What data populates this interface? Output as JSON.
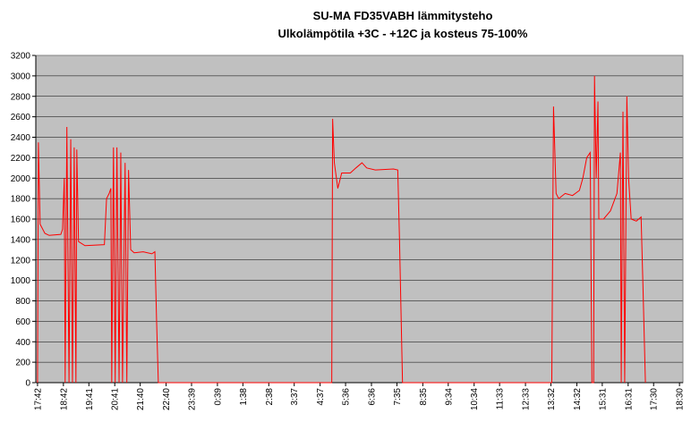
{
  "chart_data": {
    "type": "line",
    "title": "SU-MA FD35VABH lämmitysteho",
    "subtitle": "Ulkolämpötila  +3C - +12C ja kosteus 75-100%",
    "color": "#ff0000",
    "grid": true,
    "x": [
      0,
      2,
      6,
      17,
      27,
      54,
      58,
      62,
      64,
      68,
      73,
      77,
      81,
      85,
      89,
      91,
      95,
      110,
      155,
      160,
      166,
      170,
      172,
      176,
      180,
      184,
      189,
      193,
      197,
      203,
      207,
      211,
      216,
      224,
      245,
      265,
      272,
      276,
      280,
      682,
      684,
      688,
      696,
      705,
      725,
      738,
      752,
      763,
      783,
      825,
      835,
      839,
      846,
      1192,
      1196,
      1202,
      1208,
      1223,
      1240,
      1256,
      1264,
      1273,
      1281,
      1285,
      1289,
      1291,
      1295,
      1299,
      1301,
      1312,
      1328,
      1343,
      1351,
      1353,
      1357,
      1361,
      1366,
      1370,
      1376,
      1388,
      1399,
      1403,
      1409
    ],
    "values": [
      0,
      2350,
      1550,
      1460,
      1440,
      1450,
      1500,
      2000,
      0,
      2500,
      0,
      2380,
      0,
      2300,
      0,
      2280,
      1380,
      1340,
      1350,
      1800,
      1850,
      1900,
      0,
      2300,
      0,
      2300,
      0,
      2250,
      0,
      2150,
      0,
      2080,
      1300,
      1270,
      1280,
      1260,
      1280,
      600,
      0,
      0,
      2580,
      2150,
      1900,
      2050,
      2050,
      2100,
      2150,
      2100,
      2080,
      2090,
      2080,
      1400,
      0,
      0,
      2700,
      1850,
      1800,
      1850,
      1830,
      1880,
      2000,
      2200,
      2250,
      0,
      0,
      3000,
      2000,
      2750,
      1600,
      1600,
      1680,
      1850,
      2250,
      0,
      2650,
      0,
      2800,
      2000,
      1600,
      1580,
      1620,
      1000,
      0
    ],
    "xlim": [
      -4,
      1496
    ],
    "xticks": [
      {
        "value": 0,
        "label": "17:42"
      },
      {
        "value": 60,
        "label": "18:42"
      },
      {
        "value": 119,
        "label": "19:41"
      },
      {
        "value": 179,
        "label": "20:41"
      },
      {
        "value": 238,
        "label": "21:40"
      },
      {
        "value": 298,
        "label": "22:40"
      },
      {
        "value": 357,
        "label": "23:39"
      },
      {
        "value": 417,
        "label": "0:39"
      },
      {
        "value": 476,
        "label": "1:38"
      },
      {
        "value": 536,
        "label": "2:38"
      },
      {
        "value": 595,
        "label": "3:37"
      },
      {
        "value": 655,
        "label": "4:37"
      },
      {
        "value": 714,
        "label": "5:36"
      },
      {
        "value": 774,
        "label": "6:36"
      },
      {
        "value": 833,
        "label": "7:35"
      },
      {
        "value": 893,
        "label": "8:35"
      },
      {
        "value": 952,
        "label": "9:34"
      },
      {
        "value": 1012,
        "label": "10:34"
      },
      {
        "value": 1071,
        "label": "11:33"
      },
      {
        "value": 1131,
        "label": "12:33"
      },
      {
        "value": 1190,
        "label": "13:32"
      },
      {
        "value": 1250,
        "label": "14:32"
      },
      {
        "value": 1309,
        "label": "15:31"
      },
      {
        "value": 1369,
        "label": "16:31"
      },
      {
        "value": 1428,
        "label": "17:30"
      },
      {
        "value": 1488,
        "label": "18:30"
      }
    ],
    "ylim": [
      0,
      3200
    ],
    "yticks": [
      0,
      200,
      400,
      600,
      800,
      1000,
      1200,
      1400,
      1600,
      1800,
      2000,
      2200,
      2400,
      2600,
      2800,
      3000,
      3200
    ]
  }
}
